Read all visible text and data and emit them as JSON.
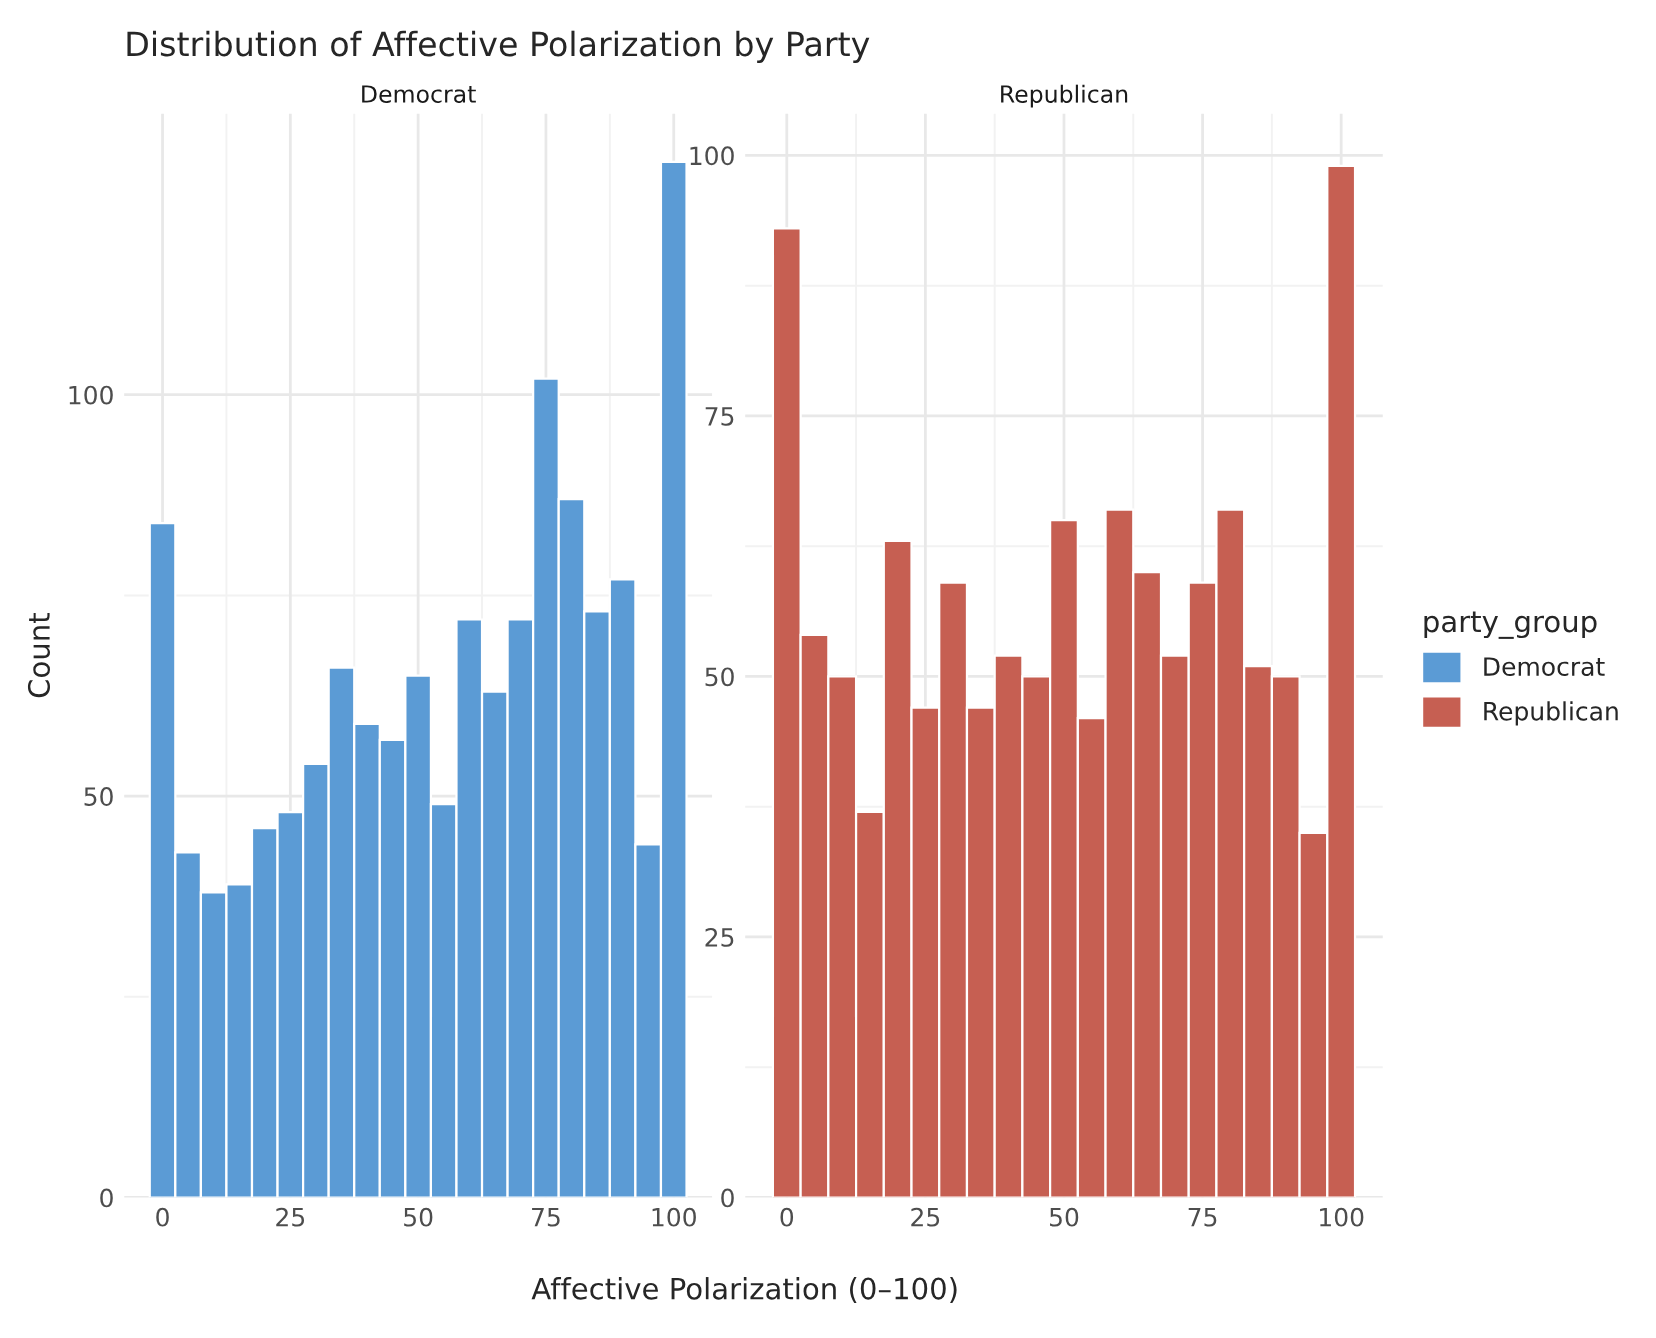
{
  "chart_data": [
    {
      "type": "histogram",
      "title": "Distribution of Affective Polarization by Party",
      "subtitle": "Democrat",
      "xlabel": "Affective Polarization (0–100)",
      "ylabel": "Count",
      "bins": [
        -2.5,
        2.5,
        7.5,
        12.5,
        17.5,
        22.5,
        27.5,
        32.5,
        37.5,
        42.5,
        47.5,
        52.5,
        57.5,
        62.5,
        67.5,
        72.5,
        77.5,
        82.5,
        87.5,
        92.5,
        97.5,
        102.5
      ],
      "series": [
        {
          "name": "Democrat",
          "color": "#5b9bd5",
          "values": [
            84,
            43,
            38,
            39,
            46,
            48,
            54,
            66,
            59,
            57,
            65,
            49,
            72,
            63,
            72,
            102,
            87,
            73,
            77,
            44,
            129
          ]
        }
      ],
      "xlim": [
        -7.5,
        107.5
      ],
      "xticks": [
        0,
        25,
        50,
        75,
        100
      ],
      "ylim": [
        0,
        135
      ],
      "yticks": [
        0,
        50,
        100
      ],
      "grid": true
    },
    {
      "type": "histogram",
      "subtitle": "Republican",
      "legend_title": "party_group",
      "legend": "right",
      "bins": [
        -2.5,
        2.5,
        7.5,
        12.5,
        17.5,
        22.5,
        27.5,
        32.5,
        37.5,
        42.5,
        47.5,
        52.5,
        57.5,
        62.5,
        67.5,
        72.5,
        77.5,
        82.5,
        87.5,
        92.5,
        97.5,
        102.5
      ],
      "series": [
        {
          "name": "Republican",
          "color": "#c65f52",
          "values": [
            93,
            54,
            50,
            37,
            63,
            47,
            59,
            47,
            52,
            50,
            65,
            46,
            66,
            60,
            52,
            59,
            66,
            51,
            50,
            35,
            99
          ]
        }
      ],
      "xlim": [
        -7.5,
        107.5
      ],
      "xticks": [
        0,
        25,
        50,
        75,
        100
      ],
      "ylim": [
        0,
        104
      ],
      "yticks": [
        0,
        25,
        50,
        75,
        100
      ],
      "grid": true
    }
  ]
}
